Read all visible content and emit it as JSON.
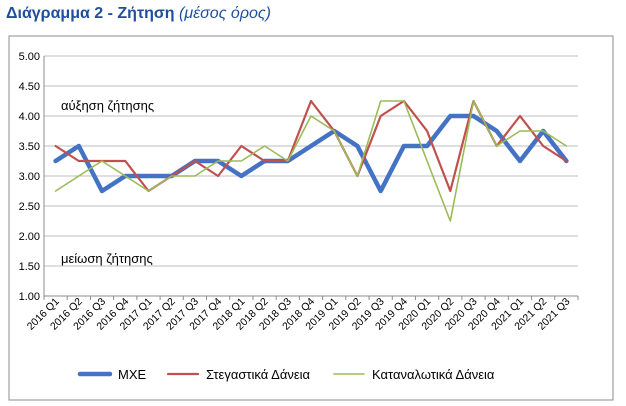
{
  "title": "Διάγραμμα 2 - Ζήτηση",
  "subtitle": "(μέσος όρος)",
  "chart_data": {
    "type": "line",
    "title": "Διάγραμμα 2 - Ζήτηση",
    "subtitle": "(μέσος όρος)",
    "xlabel": "",
    "ylabel": "",
    "ylim": [
      1.0,
      5.0
    ],
    "yticks": [
      "1.00",
      "1.50",
      "2.00",
      "2.50",
      "3.00",
      "3.50",
      "4.00",
      "4.50",
      "5.00"
    ],
    "grid": true,
    "legend_position": "bottom",
    "annotations": [
      "αύξηση ζήτησης",
      "μείωση ζήτησης"
    ],
    "x": [
      "2016 Q1",
      "2016 Q2",
      "2016 Q3",
      "2016 Q4",
      "2017 Q1",
      "2017 Q2",
      "2017 Q3",
      "2017 Q4",
      "2018 Q1",
      "2018 Q2",
      "2018 Q3",
      "2018 Q4",
      "2019 Q1",
      "2019 Q2",
      "2019 Q3",
      "2019 Q4",
      "2020 Q1",
      "2020 Q2",
      "2020 Q3",
      "2020 Q4",
      "2021 Q1",
      "2021 Q2",
      "2021 Q3"
    ],
    "series": [
      {
        "name": "ΜΧΕ",
        "color": "#4472C4",
        "values": [
          3.25,
          3.5,
          2.75,
          3.0,
          3.0,
          3.0,
          3.25,
          3.25,
          3.0,
          3.25,
          3.25,
          3.5,
          3.75,
          3.5,
          2.75,
          3.5,
          3.5,
          4.0,
          4.0,
          3.75,
          3.25,
          3.75,
          3.25
        ]
      },
      {
        "name": "Στεγαστικά Δάνεια",
        "color": "#C0504D",
        "values": [
          3.5,
          3.25,
          3.25,
          3.25,
          2.75,
          3.0,
          3.25,
          3.0,
          3.5,
          3.25,
          3.25,
          4.25,
          3.75,
          3.0,
          4.0,
          4.25,
          3.75,
          2.75,
          4.25,
          3.5,
          4.0,
          3.5,
          3.25
        ]
      },
      {
        "name": "Καταναλωτικά Δάνεια",
        "color": "#9BBB59",
        "values": [
          2.75,
          3.0,
          3.25,
          3.0,
          2.75,
          3.0,
          3.0,
          3.25,
          3.25,
          3.5,
          3.25,
          4.0,
          3.75,
          3.0,
          4.25,
          4.25,
          3.25,
          2.25,
          4.25,
          3.5,
          3.75,
          3.75,
          3.5
        ]
      }
    ]
  }
}
